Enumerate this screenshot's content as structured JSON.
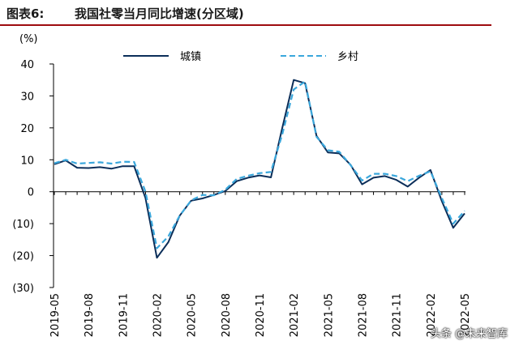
{
  "header": {
    "label": "图表6:",
    "title": "我国社零当月同比增速(分区域)"
  },
  "watermark": "头条 @未来智库",
  "chart_data": {
    "type": "line",
    "unit_label": "(%)",
    "ylim": [
      -30,
      40
    ],
    "yticks": [
      40,
      30,
      20,
      10,
      0,
      -10,
      -20,
      -30
    ],
    "ytick_labels": [
      "40",
      "30",
      "20",
      "10",
      "0",
      "(10)",
      "(20)",
      "(30)"
    ],
    "x": [
      "2019-05",
      "2019-06",
      "2019-07",
      "2019-08",
      "2019-09",
      "2019-10",
      "2019-11",
      "2019-12",
      "2020-01",
      "2020-02",
      "2020-03",
      "2020-04",
      "2020-05",
      "2020-06",
      "2020-07",
      "2020-08",
      "2020-09",
      "2020-10",
      "2020-11",
      "2020-12",
      "2021-01",
      "2021-02",
      "2021-03",
      "2021-04",
      "2021-05",
      "2021-06",
      "2021-07",
      "2021-08",
      "2021-09",
      "2021-10",
      "2021-11",
      "2021-12",
      "2022-01",
      "2022-02",
      "2022-03",
      "2022-04",
      "2022-05"
    ],
    "xtick_labels": [
      "2019-05",
      "2019-08",
      "2019-11",
      "2020-02",
      "2020-05",
      "2020-08",
      "2020-11",
      "2021-02",
      "2021-05",
      "2021-08",
      "2021-11",
      "2022-02",
      "2022-05"
    ],
    "grid": false,
    "legend_position": "top",
    "series": [
      {
        "name": "城镇",
        "color": "#0b2e59",
        "style": "solid",
        "values": [
          8.6,
          9.8,
          7.5,
          7.4,
          7.7,
          7.2,
          8.0,
          8.0,
          -2.0,
          -20.7,
          -15.8,
          -7.5,
          -2.8,
          -2.1,
          -1.0,
          0.2,
          3.3,
          4.4,
          5.1,
          4.5,
          20.0,
          35.0,
          34.0,
          17.5,
          12.3,
          12.0,
          8.4,
          2.3,
          4.4,
          4.9,
          3.7,
          1.6,
          4.4,
          6.8,
          -3.0,
          -11.3,
          -6.8
        ]
      },
      {
        "name": "乡村",
        "color": "#3aa7dc",
        "style": "dashed",
        "values": [
          8.9,
          10.0,
          8.8,
          9.0,
          9.2,
          8.8,
          9.4,
          9.3,
          0.0,
          -17.7,
          -14.0,
          -7.5,
          -2.7,
          -1.0,
          -1.1,
          0.6,
          4.0,
          5.0,
          5.8,
          6.2,
          18.0,
          32.0,
          34.5,
          17.2,
          13.0,
          12.5,
          8.3,
          3.5,
          5.6,
          5.6,
          4.9,
          3.3,
          5.0,
          6.4,
          -2.0,
          -10.0,
          -6.0
        ]
      }
    ]
  }
}
